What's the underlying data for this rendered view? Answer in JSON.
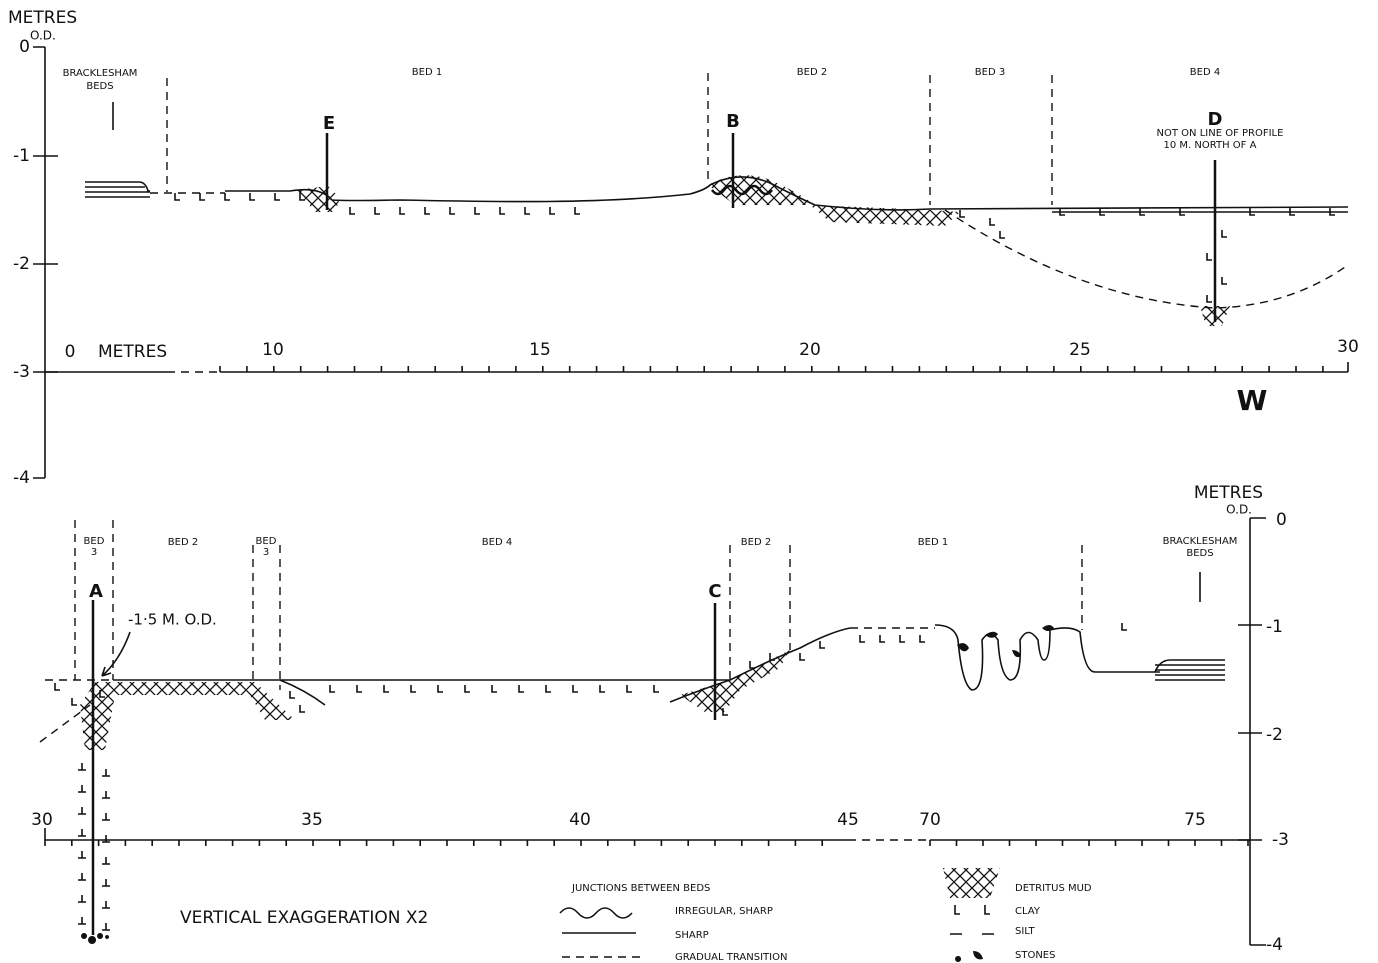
{
  "upper": {
    "y_axis_title": "METRES",
    "y_axis_subtitle": "O.D.",
    "y_ticks": [
      "0",
      "-1",
      "-2",
      "-3",
      "-4"
    ],
    "x_axis_title": "METRES",
    "x_ticks": [
      "0",
      "10",
      "15",
      "20",
      "25",
      "30"
    ],
    "bracklesham": [
      "BRACKLESHAM",
      "BEDS"
    ],
    "beds": [
      "BED 1",
      "BED 2",
      "BED 3",
      "BED 4"
    ],
    "sites": [
      "E",
      "B",
      "D"
    ],
    "note": [
      "NOT ON LINE OF PROFILE",
      "10 M. NORTH OF A"
    ],
    "direction": "W"
  },
  "lower": {
    "y_axis_title": "METRES",
    "y_axis_subtitle": "O.D.",
    "y_ticks": [
      "0",
      "-1",
      "-2",
      "-3",
      "-4"
    ],
    "x_ticks": [
      "30",
      "35",
      "40",
      "45",
      "70",
      "75"
    ],
    "bracklesham": [
      "BRACKLESHAM",
      "BEDS"
    ],
    "beds": [
      [
        "BED",
        "3"
      ],
      [
        "BED 2"
      ],
      [
        "BED",
        "3"
      ],
      [
        "BED 4"
      ],
      [
        "BED 2"
      ],
      [
        "BED 1"
      ]
    ],
    "sites": [
      "A",
      "C"
    ],
    "level_note": "-1·5 M. O.D."
  },
  "legend": {
    "title": "JUNCTIONS BETWEEN BEDS",
    "junctions": [
      "IRREGULAR, SHARP",
      "SHARP",
      "GRADUAL TRANSITION"
    ],
    "materials": [
      "DETRITUS MUD",
      "CLAY",
      "SILT",
      "STONES"
    ],
    "exaggeration": "VERTICAL EXAGGERATION X2"
  }
}
